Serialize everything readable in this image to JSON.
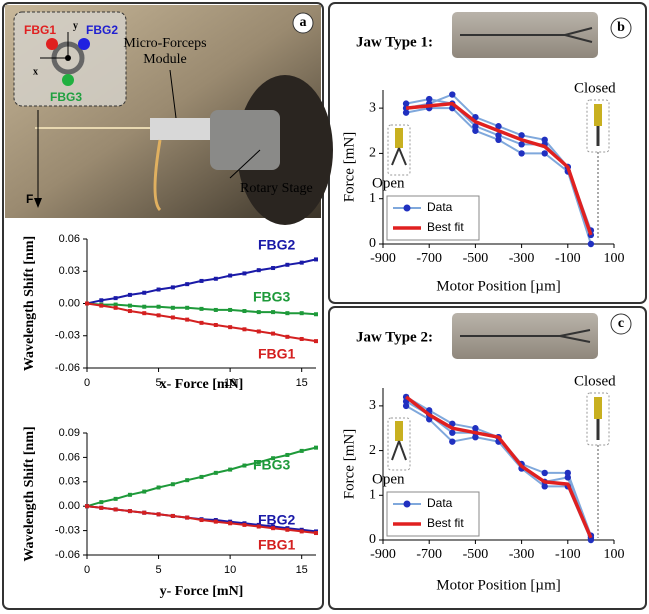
{
  "labels": {
    "panel_a": "a",
    "panel_b": "b",
    "panel_c": "c",
    "fbg1": "FBG1",
    "fbg2": "FBG2",
    "fbg3": "FBG3",
    "axis_x": "x",
    "axis_y": "y",
    "force": "F",
    "module_1": "Micro-Forceps",
    "module_2": "Module",
    "rotary": "Rotary Stage",
    "jaw1": "Jaw Type 1:",
    "jaw2": "Jaw Type 2:",
    "open_b": "Open",
    "closed_b": "Closed",
    "open_c": "Open",
    "closed_c": "Closed"
  },
  "chart_data": [
    {
      "type": "line",
      "xlabel": "x- Force [mN]",
      "ylabel": "Wavelength Shift [nm]",
      "xlim": [
        0,
        16
      ],
      "xticks": [
        0,
        5,
        10,
        15
      ],
      "ylim": [
        -0.06,
        0.06
      ],
      "yticks": [
        -0.06,
        -0.03,
        {
          "value": 0,
          "label": "0.00"
        },
        0.03,
        0.06
      ],
      "x": [
        0,
        1,
        2,
        3,
        4,
        5,
        6,
        7,
        8,
        9,
        10,
        11,
        12,
        13,
        14,
        15,
        16
      ],
      "series": [
        {
          "name": "FBG2",
          "color": "#1a1aa8",
          "values": [
            0,
            0.003,
            0.005,
            0.008,
            0.01,
            0.013,
            0.015,
            0.018,
            0.021,
            0.023,
            0.026,
            0.028,
            0.031,
            0.033,
            0.036,
            0.038,
            0.041
          ]
        },
        {
          "name": "FBG3",
          "color": "#1e9a3a",
          "values": [
            0,
            -0.001,
            -0.001,
            -0.002,
            -0.003,
            -0.003,
            -0.004,
            -0.004,
            -0.005,
            -0.006,
            -0.006,
            -0.007,
            -0.008,
            -0.008,
            -0.009,
            -0.009,
            -0.01
          ]
        },
        {
          "name": "FBG1",
          "color": "#d42020",
          "values": [
            0,
            -0.002,
            -0.004,
            -0.007,
            -0.009,
            -0.011,
            -0.013,
            -0.015,
            -0.018,
            -0.02,
            -0.022,
            -0.024,
            -0.026,
            -0.028,
            -0.031,
            -0.033,
            -0.035
          ]
        }
      ]
    },
    {
      "type": "line",
      "xlabel": "y- Force [mN]",
      "ylabel": "Wavelength Shift [nm]",
      "xlim": [
        0,
        16
      ],
      "xticks": [
        0,
        5,
        10,
        15
      ],
      "ylim": [
        -0.06,
        0.09
      ],
      "yticks": [
        -0.06,
        -0.03,
        {
          "value": 0,
          "label": "0.00"
        },
        0.03,
        0.06,
        0.09
      ],
      "x": [
        0,
        1,
        2,
        3,
        4,
        5,
        6,
        7,
        8,
        9,
        10,
        11,
        12,
        13,
        14,
        15,
        16
      ],
      "series": [
        {
          "name": "FBG3",
          "color": "#1e9a3a",
          "values": [
            0,
            0.005,
            0.009,
            0.014,
            0.018,
            0.023,
            0.027,
            0.032,
            0.036,
            0.041,
            0.045,
            0.05,
            0.054,
            0.059,
            0.063,
            0.068,
            0.072
          ]
        },
        {
          "name": "FBG2",
          "color": "#1a1aa8",
          "values": [
            0,
            -0.002,
            -0.004,
            -0.006,
            -0.008,
            -0.01,
            -0.012,
            -0.014,
            -0.016,
            -0.017,
            -0.019,
            -0.021,
            -0.023,
            -0.025,
            -0.027,
            -0.029,
            -0.031
          ]
        },
        {
          "name": "FBG1",
          "color": "#d42020",
          "values": [
            0,
            -0.002,
            -0.004,
            -0.006,
            -0.008,
            -0.01,
            -0.012,
            -0.014,
            -0.017,
            -0.019,
            -0.021,
            -0.023,
            -0.025,
            -0.027,
            -0.029,
            -0.031,
            -0.033
          ]
        }
      ]
    },
    {
      "type": "line",
      "xlabel": "Motor Position [µm]",
      "ylabel": "Force [mN]",
      "legend": "lower left",
      "xlim": [
        -900,
        100
      ],
      "xticks": [
        -900,
        -700,
        -500,
        -300,
        -100,
        100
      ],
      "ylim": [
        0,
        3.4
      ],
      "yticks": [
        0,
        1,
        2,
        3
      ],
      "x": [
        -800,
        -700,
        -600,
        -500,
        -400,
        -300,
        -200,
        -100,
        0
      ],
      "series": [
        {
          "name": "Data",
          "color": "#2030c0",
          "line_color": "#7fa8dc",
          "values": [
            [
              3.0,
              3.1,
              3.3,
              2.8,
              2.6,
              2.4,
              2.3,
              1.7,
              0.3
            ],
            [
              3.1,
              3.2,
              3.1,
              2.6,
              2.4,
              2.2,
              2.2,
              1.7,
              0.2
            ],
            [
              2.9,
              3.0,
              3.0,
              2.5,
              2.3,
              2.0,
              2.0,
              1.6,
              0.0
            ]
          ]
        },
        {
          "name": "Best fit",
          "color": "#e02020",
          "values": [
            3.0,
            3.05,
            3.1,
            2.7,
            2.5,
            2.3,
            2.15,
            1.7,
            0.2
          ]
        }
      ]
    },
    {
      "type": "line",
      "xlabel": "Motor Position [µm]",
      "ylabel": "Force [mN]",
      "legend": "lower left",
      "xlim": [
        -900,
        100
      ],
      "xticks": [
        -900,
        -700,
        -500,
        -300,
        -100,
        100
      ],
      "ylim": [
        0,
        3.4
      ],
      "yticks": [
        0,
        1,
        2,
        3
      ],
      "x": [
        -800,
        -700,
        -600,
        -500,
        -400,
        -300,
        -200,
        -100,
        0
      ],
      "series": [
        {
          "name": "Data",
          "color": "#2030c0",
          "line_color": "#7fa8dc",
          "values": [
            [
              3.2,
              2.9,
              2.6,
              2.5,
              2.3,
              1.7,
              1.5,
              1.5,
              0.1
            ],
            [
              3.1,
              2.8,
              2.4,
              2.4,
              2.3,
              1.6,
              1.3,
              1.4,
              0.05
            ],
            [
              3.0,
              2.7,
              2.2,
              2.3,
              2.2,
              1.6,
              1.2,
              1.2,
              0.0
            ]
          ]
        },
        {
          "name": "Best fit",
          "color": "#e02020",
          "values": [
            3.2,
            2.8,
            2.5,
            2.4,
            2.3,
            1.65,
            1.3,
            1.25,
            0.05
          ]
        }
      ]
    }
  ]
}
